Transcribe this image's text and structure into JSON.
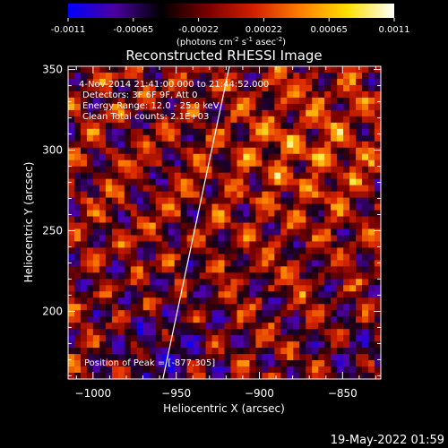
{
  "colorbar": {
    "ticks": [
      "-0.0011",
      "-0.00065",
      "-0.00022",
      "0.00022",
      "0.00065",
      "0.0011"
    ],
    "units_label": "(photons cm",
    "units_label_exp1": "-2",
    "units_label_mid": " s",
    "units_label_exp2": "-1",
    "units_label_end": " asec",
    "units_label_exp3": "-2",
    "units_label_close": ")",
    "colormap": [
      "#0000ff",
      "#4b00a0",
      "#000000",
      "#7a0000",
      "#d42000",
      "#ff8000",
      "#ffe000",
      "#ffffff"
    ]
  },
  "chart_data": {
    "type": "heatmap",
    "title": "Reconstructed RHESSI Image",
    "xlabel": "Heliocentric X (arcsec)",
    "ylabel": "Heliocentric Y (arcsec)",
    "xlim": [
      -1015,
      -827
    ],
    "ylim": [
      158,
      352
    ],
    "xticks": [
      -1000,
      -950,
      -900,
      -850
    ],
    "yticks": [
      200,
      250,
      300,
      350
    ],
    "annotations": {
      "time_range": "4-Nov-2014 21:41:00.000 to 21:44:52.000",
      "detectors": "Detectors: 3F 6F 9F, Att 0",
      "energy_range": "Energy Range: 12.0 - 25.0 keV",
      "clean": "Clean    Total counts: 2.1E+03",
      "peak": "Position of Peak = [-877,305]"
    },
    "peak_position": [
      -877,
      305
    ],
    "limb_line": [
      [
        -958,
        158
      ],
      [
        -918,
        352
      ]
    ]
  },
  "footer": {
    "timestamp": "19-May-2022 01:59"
  }
}
